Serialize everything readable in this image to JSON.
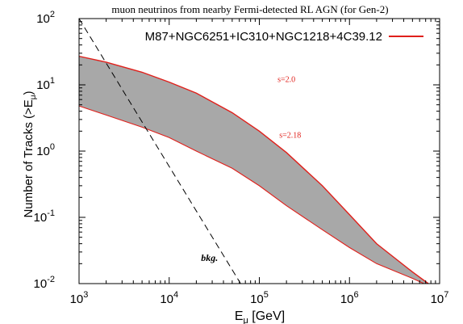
{
  "chart_data": {
    "type": "area",
    "title": "muon neutrinos from nearby Fermi-detected RL AGN (for Gen-2)",
    "xlabel": {
      "main": "E",
      "sub": "μ",
      "suffix": " [GeV]"
    },
    "ylabel": {
      "main": "Number of Tracks (>E",
      "sub": "μ",
      "suffix": ")"
    },
    "x_scale": "log",
    "y_scale": "log",
    "xlim": [
      1000,
      10000000
    ],
    "ylim": [
      0.01,
      100
    ],
    "x_ticks": [
      {
        "value": 1000,
        "base": "10",
        "exp": "3"
      },
      {
        "value": 10000,
        "base": "10",
        "exp": "4"
      },
      {
        "value": 100000,
        "base": "10",
        "exp": "5"
      },
      {
        "value": 1000000,
        "base": "10",
        "exp": "6"
      },
      {
        "value": 10000000,
        "base": "10",
        "exp": "7"
      }
    ],
    "y_ticks": [
      {
        "value": 0.01,
        "base": "10",
        "exp": "-2"
      },
      {
        "value": 0.1,
        "base": "10",
        "exp": "-1"
      },
      {
        "value": 1,
        "base": "10",
        "exp": "0"
      },
      {
        "value": 10,
        "base": "10",
        "exp": "1"
      },
      {
        "value": 100,
        "base": "10",
        "exp": "2"
      }
    ],
    "legend": {
      "label": "M87+NGC6251+IC310+NGC1218+4C39.12",
      "placement": "top-right",
      "color": "#e0201b"
    },
    "band": {
      "fill": "#a8a8a8",
      "edge_color": "#e0201b",
      "upper": {
        "name": "s=2.0",
        "x": [
          1000,
          2000,
          5000,
          10000,
          20000,
          50000,
          100000,
          200000,
          500000,
          1000000,
          2000000,
          5000000,
          7500000
        ],
        "y": [
          27,
          22,
          15.5,
          11,
          7.5,
          3.8,
          2.0,
          0.95,
          0.3,
          0.11,
          0.04,
          0.015,
          0.01
        ]
      },
      "lower": {
        "name": "s=2.18",
        "x": [
          1000,
          2000,
          5000,
          10000,
          20000,
          50000,
          100000,
          200000,
          500000,
          1000000,
          2000000,
          5000000,
          6700000
        ],
        "y": [
          4.8,
          3.5,
          2.3,
          1.6,
          1.0,
          0.55,
          0.3,
          0.15,
          0.065,
          0.035,
          0.02,
          0.012,
          0.01
        ]
      },
      "annotations": [
        {
          "text": "s=2.0",
          "x": 200000,
          "y": 11,
          "color": "#e0201b"
        },
        {
          "text": "s=2.18",
          "x": 220000,
          "y": 1.6,
          "color": "#e0201b"
        }
      ]
    },
    "background": {
      "name": "bkg.",
      "style": "dashed",
      "color": "#000000",
      "x": [
        1000,
        62000
      ],
      "y": [
        100,
        0.01
      ],
      "label": {
        "text": "bkg.",
        "x": 28000,
        "y": 0.022
      }
    },
    "grid": false
  }
}
